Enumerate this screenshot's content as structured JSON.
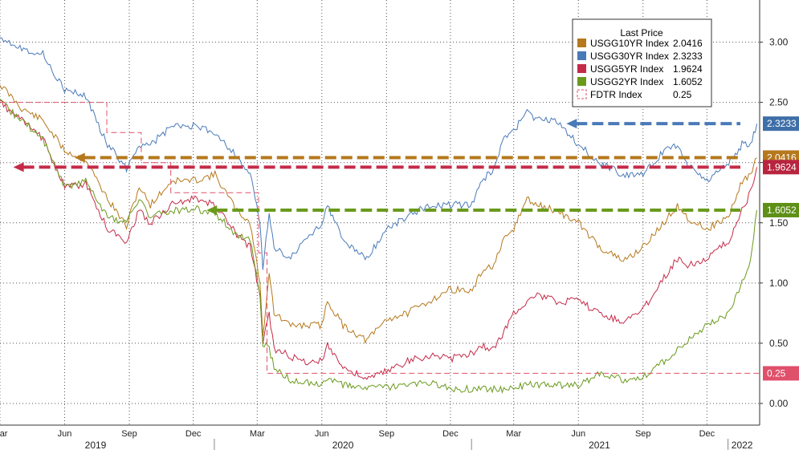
{
  "chart_data": {
    "type": "line",
    "title": "",
    "xlabel": "",
    "ylabel": "",
    "ylim": [
      -0.18,
      3.35
    ],
    "yaxis_side": "right",
    "grid": "dotted",
    "legend_placement": "top-right",
    "legend_title": "Last Price",
    "x_month_labels": [
      "Mar",
      "Jun",
      "Sep",
      "Dec",
      "Mar",
      "Jun",
      "Sep",
      "Dec",
      "Mar",
      "Jun",
      "Sep",
      "Dec"
    ],
    "x_month_dates": [
      "2019-03-01",
      "2019-06-01",
      "2019-09-01",
      "2019-12-01",
      "2020-03-01",
      "2020-06-01",
      "2020-09-01",
      "2020-12-01",
      "2021-03-01",
      "2021-06-01",
      "2021-09-01",
      "2021-12-01"
    ],
    "x_year_labels": [
      "2019",
      "2020",
      "2021",
      "2022"
    ],
    "x_year_dates": [
      "2019-07-15",
      "2020-07-01",
      "2021-07-01",
      "2022-01-20"
    ],
    "year_dividers": [
      "2019-12-31",
      "2020-12-31",
      "2021-12-31"
    ],
    "x_range": [
      "2019-03-01",
      "2022-02-14"
    ],
    "yticks": [
      0.0,
      0.5,
      1.0,
      1.5,
      2.0,
      2.5,
      3.0
    ],
    "ytick_labels": [
      "0.00",
      "0.50",
      "1.00",
      "1.50",
      "2.00",
      "2.50",
      "3.00"
    ],
    "series": [
      {
        "name": "USGG10YR Index",
        "last": "2.0416",
        "color": "#b5781c",
        "dash": false,
        "x": [
          "2019-03-01",
          "2019-04-01",
          "2019-05-01",
          "2019-06-01",
          "2019-07-01",
          "2019-08-01",
          "2019-08-28",
          "2019-09-15",
          "2019-10-01",
          "2019-11-01",
          "2019-12-01",
          "2020-01-01",
          "2020-02-01",
          "2020-02-20",
          "2020-03-05",
          "2020-03-09",
          "2020-03-18",
          "2020-03-25",
          "2020-04-15",
          "2020-05-01",
          "2020-06-01",
          "2020-06-09",
          "2020-07-01",
          "2020-08-04",
          "2020-09-01",
          "2020-10-01",
          "2020-11-01",
          "2020-12-01",
          "2021-01-01",
          "2021-01-15",
          "2021-02-01",
          "2021-02-15",
          "2021-03-01",
          "2021-03-20",
          "2021-04-01",
          "2021-05-01",
          "2021-06-01",
          "2021-07-01",
          "2021-08-04",
          "2021-09-01",
          "2021-10-01",
          "2021-10-20",
          "2021-11-01",
          "2021-12-01",
          "2022-01-01",
          "2022-01-20",
          "2022-02-01",
          "2022-02-10"
        ],
        "y": [
          2.65,
          2.45,
          2.35,
          2.1,
          2.02,
          1.7,
          1.47,
          1.8,
          1.65,
          1.85,
          1.85,
          1.9,
          1.6,
          1.5,
          1.0,
          0.55,
          1.1,
          0.75,
          0.65,
          0.65,
          0.65,
          0.85,
          0.65,
          0.52,
          0.7,
          0.75,
          0.85,
          0.95,
          0.93,
          1.1,
          1.15,
          1.35,
          1.45,
          1.7,
          1.65,
          1.6,
          1.5,
          1.3,
          1.18,
          1.3,
          1.5,
          1.65,
          1.55,
          1.45,
          1.55,
          1.85,
          1.9,
          2.04
        ]
      },
      {
        "name": "USGG30YR Index",
        "last": "2.3233",
        "color": "#4a7ab8",
        "dash": false,
        "x": [
          "2019-03-01",
          "2019-04-01",
          "2019-05-01",
          "2019-06-01",
          "2019-07-01",
          "2019-08-01",
          "2019-08-28",
          "2019-09-15",
          "2019-10-01",
          "2019-11-01",
          "2019-12-01",
          "2020-01-01",
          "2020-02-01",
          "2020-02-20",
          "2020-03-05",
          "2020-03-09",
          "2020-03-18",
          "2020-03-25",
          "2020-04-15",
          "2020-05-01",
          "2020-06-01",
          "2020-06-09",
          "2020-07-01",
          "2020-08-04",
          "2020-09-01",
          "2020-10-01",
          "2020-11-01",
          "2020-12-01",
          "2021-01-01",
          "2021-01-15",
          "2021-02-01",
          "2021-02-15",
          "2021-03-01",
          "2021-03-20",
          "2021-04-01",
          "2021-05-01",
          "2021-06-01",
          "2021-07-01",
          "2021-08-04",
          "2021-09-01",
          "2021-10-01",
          "2021-10-20",
          "2021-11-01",
          "2021-12-01",
          "2022-01-01",
          "2022-01-20",
          "2022-02-01",
          "2022-02-10"
        ],
        "y": [
          3.05,
          2.95,
          2.9,
          2.6,
          2.55,
          2.15,
          1.95,
          2.15,
          2.15,
          2.3,
          2.3,
          2.25,
          2.05,
          1.9,
          1.5,
          1.1,
          1.6,
          1.3,
          1.2,
          1.3,
          1.5,
          1.65,
          1.35,
          1.2,
          1.45,
          1.55,
          1.65,
          1.65,
          1.65,
          1.85,
          1.95,
          2.2,
          2.25,
          2.45,
          2.35,
          2.35,
          2.15,
          2.0,
          1.9,
          1.9,
          2.1,
          2.15,
          2.0,
          1.85,
          2.0,
          2.15,
          2.15,
          2.3233
        ]
      },
      {
        "name": "USGG5YR Index",
        "last": "1.9624",
        "color": "#c42b48",
        "dash": false,
        "x": [
          "2019-03-01",
          "2019-04-01",
          "2019-05-01",
          "2019-06-01",
          "2019-07-01",
          "2019-08-01",
          "2019-08-28",
          "2019-09-15",
          "2019-10-01",
          "2019-11-01",
          "2019-12-01",
          "2020-01-01",
          "2020-02-01",
          "2020-02-20",
          "2020-03-05",
          "2020-03-09",
          "2020-03-18",
          "2020-03-25",
          "2020-04-15",
          "2020-05-01",
          "2020-06-01",
          "2020-06-09",
          "2020-07-01",
          "2020-08-04",
          "2020-09-01",
          "2020-10-01",
          "2020-11-01",
          "2020-12-01",
          "2021-01-01",
          "2021-01-15",
          "2021-02-01",
          "2021-02-15",
          "2021-03-01",
          "2021-03-20",
          "2021-04-01",
          "2021-05-01",
          "2021-06-01",
          "2021-07-01",
          "2021-08-04",
          "2021-09-01",
          "2021-10-01",
          "2021-10-20",
          "2021-11-01",
          "2021-12-01",
          "2022-01-01",
          "2022-01-20",
          "2022-02-01",
          "2022-02-10"
        ],
        "y": [
          2.5,
          2.35,
          2.2,
          1.8,
          1.82,
          1.45,
          1.35,
          1.6,
          1.5,
          1.65,
          1.7,
          1.65,
          1.4,
          1.3,
          0.9,
          0.5,
          0.75,
          0.45,
          0.4,
          0.35,
          0.35,
          0.5,
          0.3,
          0.2,
          0.27,
          0.35,
          0.4,
          0.37,
          0.42,
          0.48,
          0.45,
          0.6,
          0.75,
          0.85,
          0.9,
          0.85,
          0.85,
          0.75,
          0.68,
          0.78,
          1.05,
          1.2,
          1.15,
          1.2,
          1.35,
          1.6,
          1.75,
          1.9624
        ]
      },
      {
        "name": "USGG2YR Index",
        "last": "1.6052",
        "color": "#6a9a1c",
        "dash": false,
        "x": [
          "2019-03-01",
          "2019-04-01",
          "2019-05-01",
          "2019-06-01",
          "2019-07-01",
          "2019-08-01",
          "2019-08-28",
          "2019-09-15",
          "2019-10-01",
          "2019-11-01",
          "2019-12-01",
          "2020-01-01",
          "2020-02-01",
          "2020-02-20",
          "2020-03-05",
          "2020-03-09",
          "2020-03-18",
          "2020-03-25",
          "2020-04-15",
          "2020-05-01",
          "2020-06-01",
          "2020-06-09",
          "2020-07-01",
          "2020-08-04",
          "2020-09-01",
          "2020-10-01",
          "2020-11-01",
          "2020-12-01",
          "2021-01-01",
          "2021-01-15",
          "2021-02-01",
          "2021-02-15",
          "2021-03-01",
          "2021-03-20",
          "2021-04-01",
          "2021-05-01",
          "2021-06-01",
          "2021-07-01",
          "2021-08-04",
          "2021-09-01",
          "2021-10-01",
          "2021-10-20",
          "2021-11-01",
          "2021-12-01",
          "2022-01-01",
          "2022-01-20",
          "2022-02-01",
          "2022-02-10"
        ],
        "y": [
          2.5,
          2.35,
          2.2,
          1.8,
          1.85,
          1.55,
          1.5,
          1.7,
          1.55,
          1.6,
          1.62,
          1.58,
          1.4,
          1.35,
          0.9,
          0.5,
          0.45,
          0.3,
          0.2,
          0.17,
          0.17,
          0.2,
          0.15,
          0.13,
          0.13,
          0.15,
          0.17,
          0.12,
          0.12,
          0.13,
          0.12,
          0.11,
          0.13,
          0.15,
          0.16,
          0.15,
          0.15,
          0.25,
          0.2,
          0.22,
          0.35,
          0.45,
          0.5,
          0.65,
          0.75,
          1.0,
          1.2,
          1.6052
        ]
      },
      {
        "name": "FDTR Index",
        "last": "0.25",
        "color": "#e0506a",
        "dash": true,
        "step": true,
        "x": [
          "2019-03-01",
          "2019-07-31",
          "2019-07-31",
          "2019-09-18",
          "2019-09-18",
          "2019-10-30",
          "2019-10-30",
          "2020-03-03",
          "2020-03-03",
          "2020-03-15",
          "2020-03-15",
          "2022-02-14"
        ],
        "y": [
          2.5,
          2.5,
          2.25,
          2.25,
          2.0,
          2.0,
          1.75,
          1.75,
          1.25,
          1.25,
          0.25,
          0.25
        ]
      }
    ],
    "annotations": [
      {
        "label": "USGG30YR Index",
        "level": 2.3233,
        "from": "2021-05-15",
        "to": "2022-02-14",
        "color": "#4a7ab8"
      },
      {
        "label": "USGG10YR Index",
        "level": 2.0416,
        "from": "2019-06-15",
        "to": "2022-02-14",
        "color": "#b5781c"
      },
      {
        "label": "USGG5YR Index",
        "level": 1.9624,
        "from": "2019-03-20",
        "to": "2022-02-14",
        "color": "#c42b48"
      },
      {
        "label": "USGG2YR Index",
        "level": 1.6052,
        "from": "2019-12-20",
        "to": "2022-02-14",
        "color": "#6a9a1c"
      }
    ],
    "price_tags": [
      {
        "text": "2.3233",
        "value": 2.3233,
        "bg": "#3f6fa8"
      },
      {
        "text": "2.0416",
        "value": 2.0416,
        "bg": "#b5781c"
      },
      {
        "text": "1.9624",
        "value": 1.9624,
        "bg": "#b8243e"
      },
      {
        "text": "1.6052",
        "value": 1.6052,
        "bg": "#5e8f17"
      },
      {
        "text": "0.25",
        "value": 0.25,
        "bg": "#e0506a"
      }
    ]
  }
}
